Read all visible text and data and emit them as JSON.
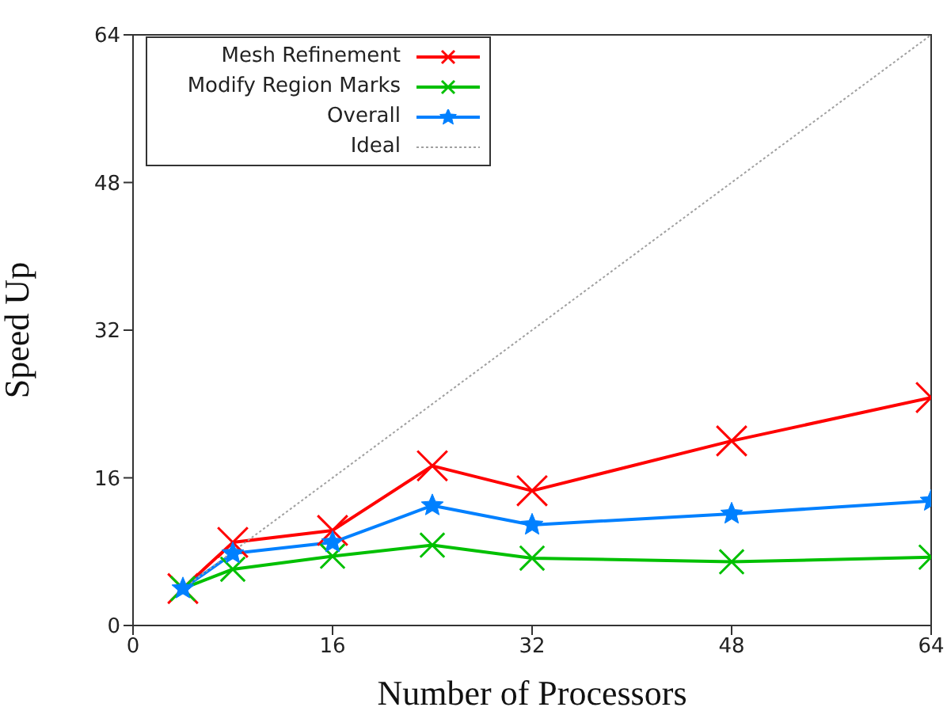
{
  "chart_data": {
    "type": "line",
    "xlabel": "Number of Processors",
    "ylabel": "Speed Up",
    "xlim": [
      0,
      64
    ],
    "ylim": [
      0,
      64
    ],
    "xticks": [
      0,
      16,
      32,
      48,
      64
    ],
    "yticks": [
      0,
      16,
      32,
      48,
      64
    ],
    "grid": false,
    "legend": "top left",
    "line_style": "solid",
    "series": [
      {
        "name": "Mesh Refinement",
        "color": "#ff0000",
        "marker": "cross",
        "x": [
          4,
          8,
          16,
          24,
          32,
          48,
          64
        ],
        "values": [
          4.0,
          9.0,
          10.3,
          17.3,
          14.6,
          20.0,
          24.7
        ]
      },
      {
        "name": "Modify Region Marks",
        "color": "#00c000",
        "marker": "cross",
        "x": [
          4,
          8,
          16,
          24,
          32,
          48,
          64
        ],
        "values": [
          4.0,
          6.1,
          7.5,
          8.7,
          7.3,
          6.9,
          7.4
        ]
      },
      {
        "name": "Overall",
        "color": "#0080ff",
        "marker": "star",
        "x": [
          4,
          8,
          16,
          24,
          32,
          48,
          64
        ],
        "values": [
          4.0,
          7.8,
          9.0,
          13.0,
          10.9,
          12.1,
          13.5
        ]
      },
      {
        "name": "Ideal",
        "color": "#a0a0a0",
        "marker": "none",
        "line_style": "dotted",
        "x": [
          4,
          64
        ],
        "values": [
          4,
          64
        ]
      }
    ]
  }
}
